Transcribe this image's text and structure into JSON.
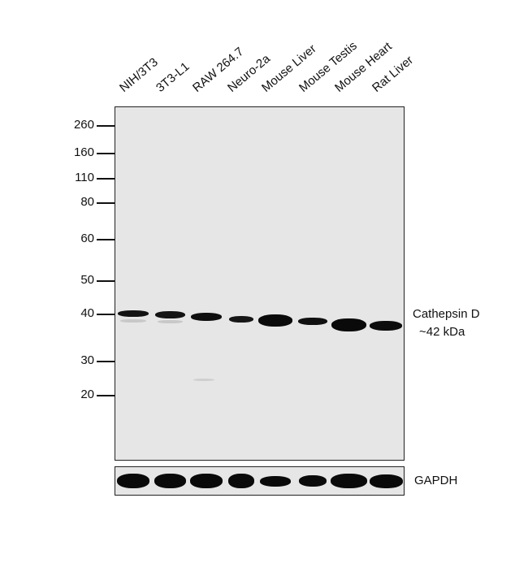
{
  "lanes": [
    "NIH/3T3",
    "3T3-L1",
    "RAW 264.7",
    "Neuro-2a",
    "Mouse Liver",
    "Mouse Testis",
    "Mouse Heart",
    "Rat Liver"
  ],
  "markers": [
    {
      "label": "260",
      "kda": 260
    },
    {
      "label": "160",
      "kda": 160
    },
    {
      "label": "110",
      "kda": 110
    },
    {
      "label": "80",
      "kda": 80
    },
    {
      "label": "60",
      "kda": 60
    },
    {
      "label": "50",
      "kda": 50
    },
    {
      "label": "40",
      "kda": 40
    },
    {
      "label": "30",
      "kda": 30
    },
    {
      "label": "20",
      "kda": 20
    }
  ],
  "target": {
    "name": "Cathepsin D",
    "size": "~42 kDa"
  },
  "target_band_intensity": [
    0.85,
    0.85,
    0.92,
    0.8,
    1.0,
    0.9,
    1.0,
    0.95
  ],
  "loading_control": {
    "name": "GAPDH"
  },
  "loading_band_intensity": [
    1.0,
    1.0,
    1.0,
    1.0,
    0.55,
    0.65,
    1.0,
    0.9
  ],
  "colors": {
    "membrane": "#e6e6e6",
    "band": "#0a0a0a",
    "border": "#222222"
  }
}
